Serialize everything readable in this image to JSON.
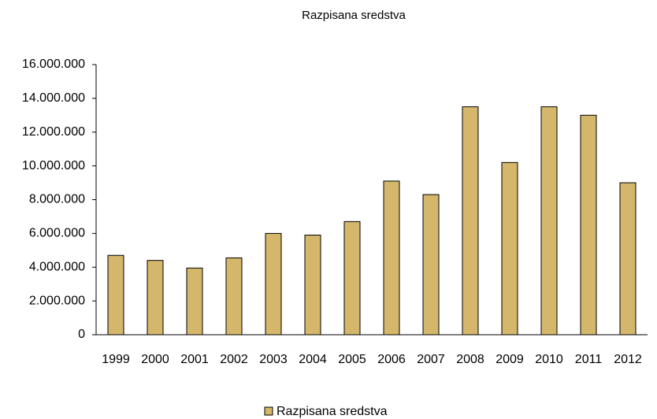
{
  "chart_data": {
    "type": "bar",
    "title": "Razpisana sredstva",
    "categories": [
      "1999",
      "2000",
      "2001",
      "2002",
      "2003",
      "2004",
      "2005",
      "2006",
      "2007",
      "2008",
      "2009",
      "2010",
      "2011",
      "2012"
    ],
    "series": [
      {
        "name": "Razpisana sredstva",
        "color": "#d4b76a",
        "values": [
          4700000,
          4400000,
          3950000,
          4550000,
          6000000,
          5900000,
          6700000,
          9100000,
          8300000,
          13500000,
          10200000,
          13500000,
          13000000,
          9000000
        ]
      }
    ],
    "ylim": [
      0,
      16000000
    ],
    "yticks": [
      0,
      {
        "value": 2000000,
        "label": "2.000.000"
      },
      {
        "value": 4000000,
        "label": "4.000.000"
      },
      {
        "value": 6000000,
        "label": "6.000.000"
      },
      {
        "value": 8000000,
        "label": "8.000.000"
      },
      {
        "value": 10000000,
        "label": "10.000.000"
      },
      {
        "value": 12000000,
        "label": "12.000.000"
      },
      {
        "value": 14000000,
        "label": "14.000.000"
      },
      {
        "value": 16000000,
        "label": "16.000.000"
      }
    ],
    "grid": false,
    "legend": "bottom"
  }
}
